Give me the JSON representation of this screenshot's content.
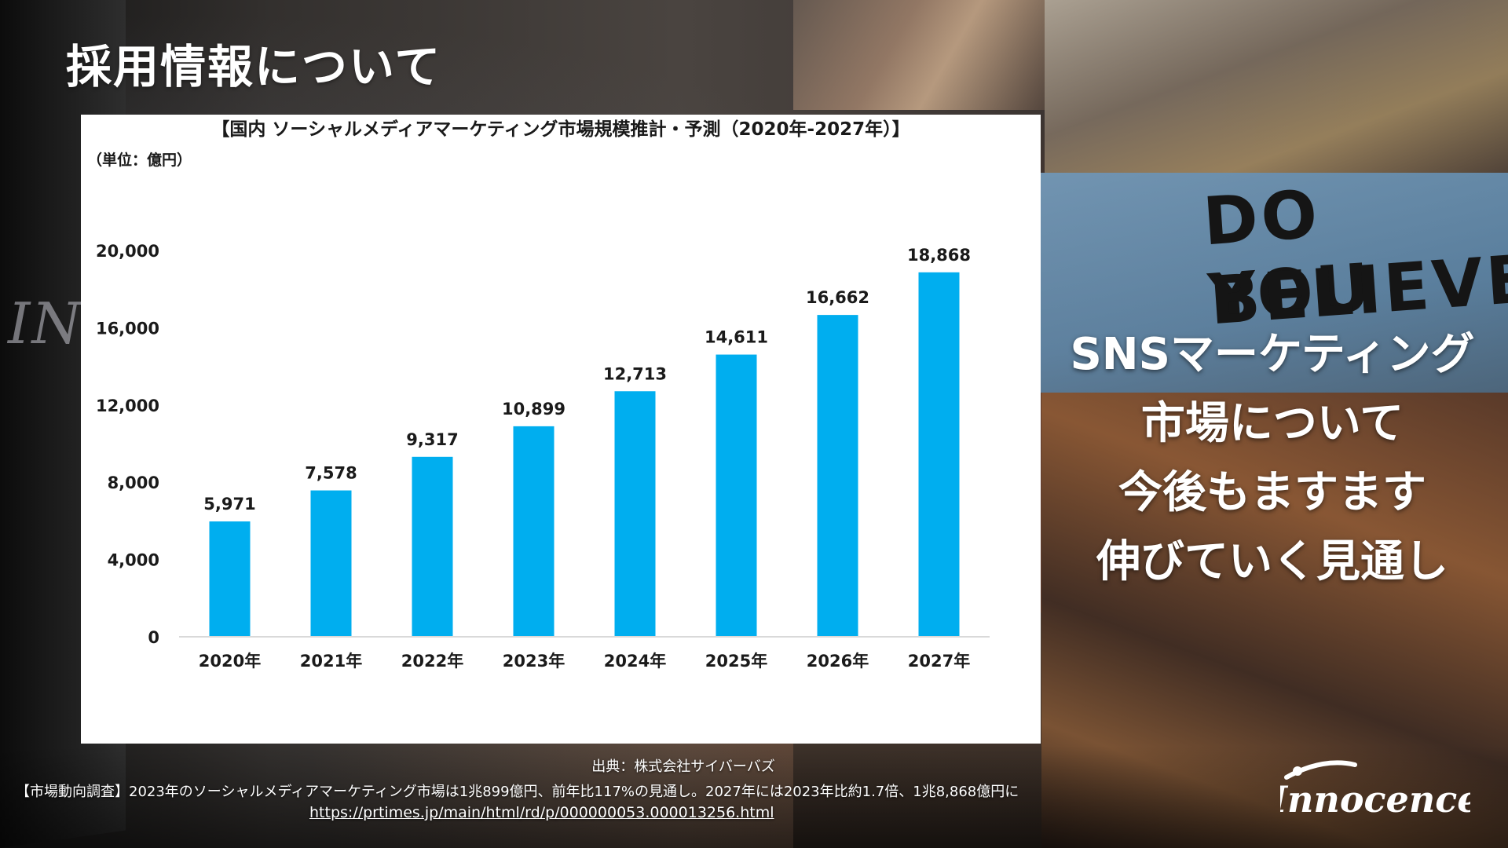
{
  "page": {
    "title": "採用情報について"
  },
  "side_message": {
    "lines": [
      "SNSマーケティング",
      "市場について",
      "今後もますます",
      "伸びていく見通し"
    ]
  },
  "source": {
    "credit": "出典：株式会社サイバーバズ",
    "headline": "【市場動向調査】2023年のソーシャルメディアマーケティング市場は1兆899億円、前年比117%の見通し。2027年には2023年比約1.7倍、1兆8,868億円に",
    "url": "https://prtimes.jp/main/html/rd/p/000000053.000013256.html"
  },
  "brand": {
    "logo_text": "Innocence"
  },
  "background": {
    "sign_line_1": "DO YOU",
    "sign_line_2": "BELIEVE",
    "wall_text": "INN"
  },
  "chart_data": {
    "type": "bar",
    "title": "【国内 ソーシャルメディアマーケティング市場規模推計・予測（2020年-2027年）】",
    "unit_label": "（単位：億円）",
    "categories": [
      "2020年",
      "2021年",
      "2022年",
      "2023年",
      "2024年",
      "2025年",
      "2026年",
      "2027年"
    ],
    "values": [
      5971,
      7578,
      9317,
      10899,
      12713,
      14611,
      16662,
      18868
    ],
    "value_labels": [
      "5,971",
      "7,578",
      "9,317",
      "10,899",
      "12,713",
      "14,611",
      "16,662",
      "18,868"
    ],
    "y_ticks": [
      0,
      4000,
      8000,
      12000,
      16000,
      20000
    ],
    "y_tick_labels": [
      "0",
      "4,000",
      "8,000",
      "12,000",
      "16,000",
      "20,000"
    ],
    "ylim": [
      0,
      20000
    ],
    "xlabel": "",
    "ylabel": "",
    "grid": false,
    "bar_color": "#00aeef"
  }
}
